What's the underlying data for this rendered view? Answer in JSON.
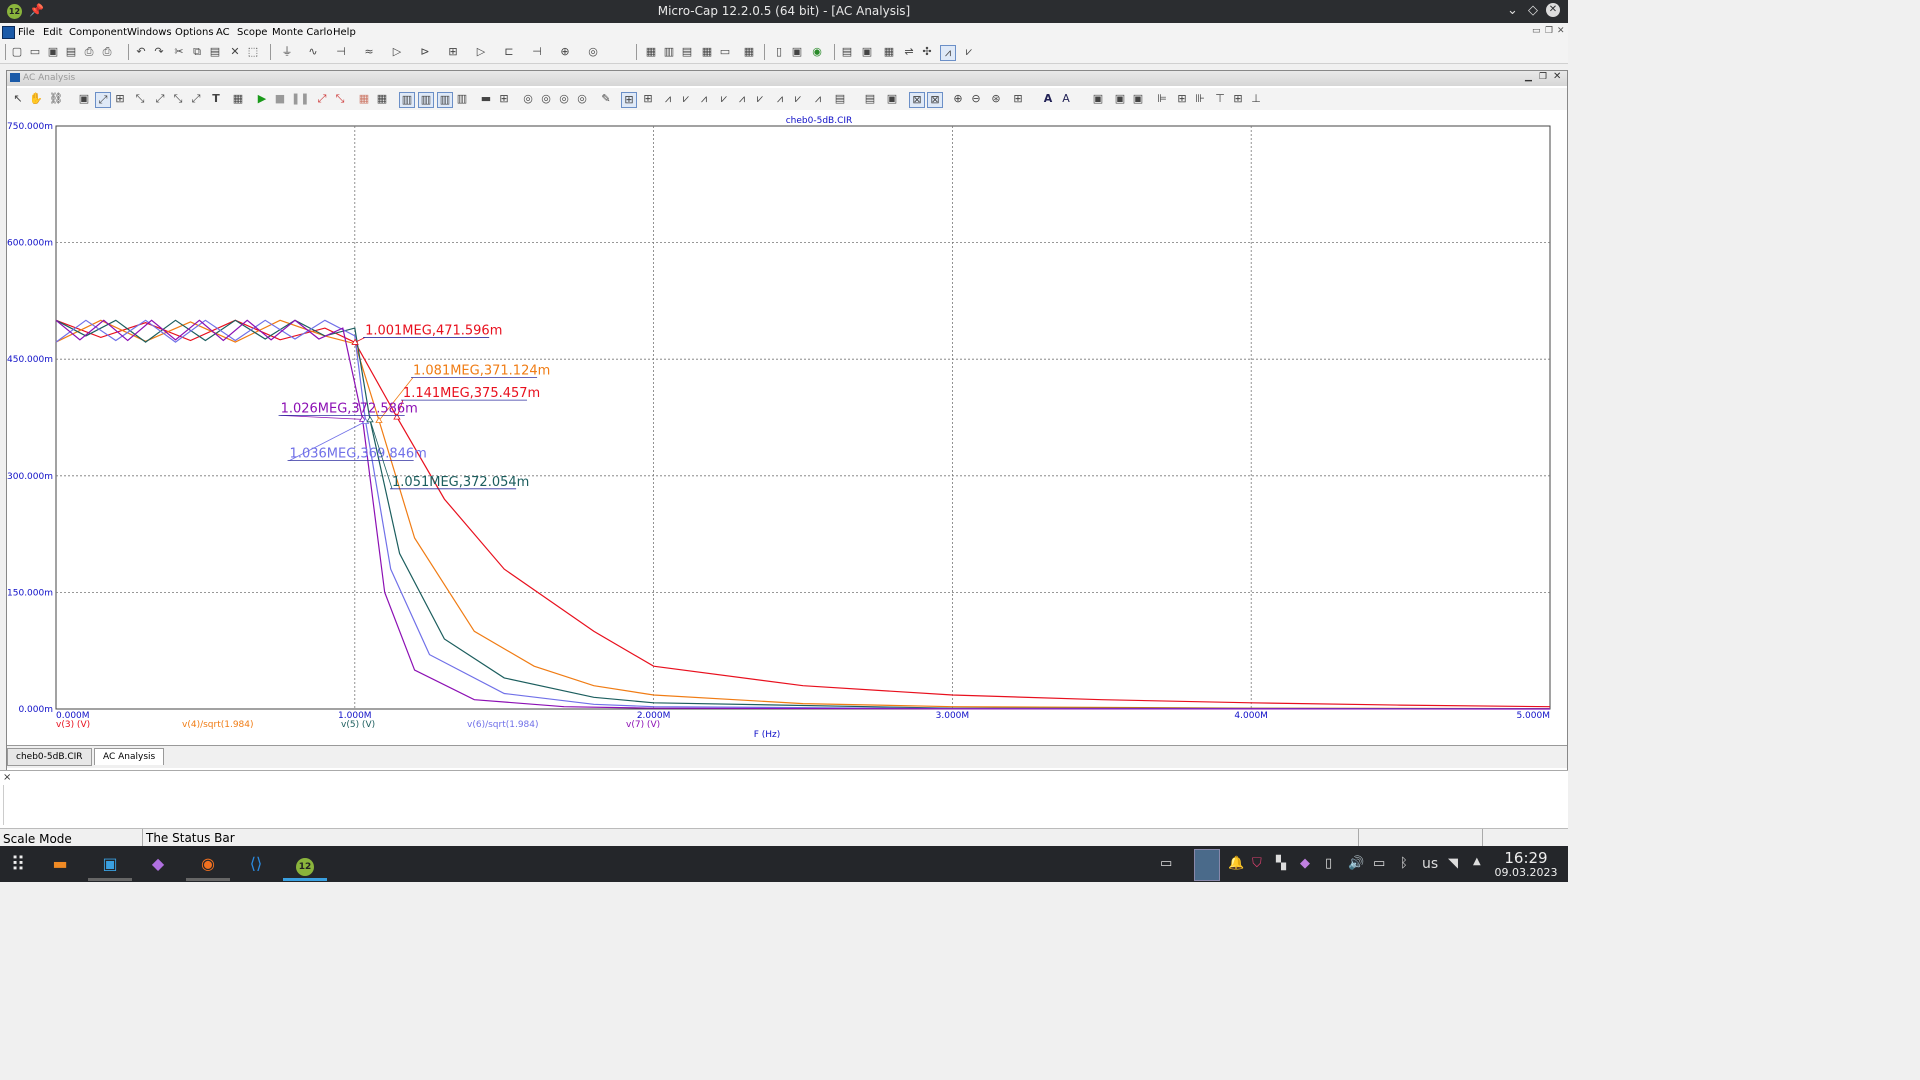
{
  "window": {
    "title": "Micro-Cap 12.2.0.5 (64 bit) - [AC Analysis]",
    "app_badge": "12"
  },
  "menu": [
    "File",
    "Edit",
    "Component",
    "Windows",
    "Options",
    "AC",
    "Scope",
    "Monte Carlo",
    "Help"
  ],
  "child_window": {
    "title": "AC Analysis"
  },
  "plot": {
    "file_title": "cheb0-5dB.CIR",
    "x_axis_title": "F (Hz)",
    "y_tick_labels": [
      "750.000m",
      "600.000m",
      "450.000m",
      "300.000m",
      "150.000m",
      "0.000m"
    ],
    "x_tick_labels": [
      "0.000M",
      "1.000M",
      "2.000M",
      "3.000M",
      "4.000M",
      "5.000M"
    ],
    "trace_labels": [
      "v(3) (V)",
      "v(4)/sqrt(1.984)",
      "v(5) (V)",
      "v(6)/sqrt(1.984)",
      "v(7) (V)"
    ],
    "cursor_labels": [
      "1.001MEG,471.596m",
      "1.081MEG,371.124m",
      "1.141MEG,375.457m",
      "1.026MEG,372.586m",
      "1.036MEG,369.846m",
      "1.051MEG,372.054m"
    ]
  },
  "chart_data": {
    "type": "line",
    "title": "cheb0-5dB.CIR",
    "xlabel": "F (Hz)",
    "ylabel": "",
    "xlim": [
      0,
      5000000
    ],
    "ylim": [
      0,
      0.75
    ],
    "grid": true,
    "series": [
      {
        "name": "v(3) (V)",
        "color": "#e8101e",
        "x": [
          0,
          150000,
          300000,
          450000,
          600000,
          750000,
          900000,
          1001000,
          1141000,
          1300000,
          1500000,
          1800000,
          2000000,
          2500000,
          3000000,
          3500000,
          4000000,
          4500000,
          5000000
        ],
        "y": [
          0.5,
          0.478,
          0.497,
          0.474,
          0.5,
          0.475,
          0.49,
          0.4716,
          0.3755,
          0.27,
          0.18,
          0.1,
          0.055,
          0.03,
          0.018,
          0.012,
          0.008,
          0.005,
          0.003
        ]
      },
      {
        "name": "v(4)/sqrt(1.984)",
        "color": "#f07c14",
        "x": [
          0,
          150000,
          300000,
          450000,
          600000,
          750000,
          900000,
          1001000,
          1081000,
          1200000,
          1400000,
          1600000,
          1800000,
          2000000,
          2500000,
          3000000,
          4000000,
          5000000
        ],
        "y": [
          0.472,
          0.5,
          0.473,
          0.498,
          0.472,
          0.5,
          0.48,
          0.47,
          0.3711,
          0.22,
          0.1,
          0.055,
          0.03,
          0.018,
          0.007,
          0.003,
          0.001,
          0.0005
        ]
      },
      {
        "name": "v(5) (V)",
        "color": "#1c5e5e",
        "x": [
          0,
          100000,
          200000,
          300000,
          400000,
          500000,
          600000,
          700000,
          800000,
          900000,
          1000000,
          1051000,
          1150000,
          1300000,
          1500000,
          1800000,
          2000000,
          3000000,
          5000000
        ],
        "y": [
          0.5,
          0.48,
          0.5,
          0.472,
          0.5,
          0.474,
          0.5,
          0.476,
          0.5,
          0.48,
          0.49,
          0.3721,
          0.2,
          0.09,
          0.04,
          0.015,
          0.008,
          0.001,
          0.0002
        ]
      },
      {
        "name": "v(6)/sqrt(1.984)",
        "color": "#7070e8",
        "x": [
          0,
          100000,
          200000,
          300000,
          400000,
          500000,
          600000,
          700000,
          800000,
          900000,
          1000000,
          1036000,
          1120000,
          1250000,
          1500000,
          1800000,
          2000000,
          3000000,
          5000000
        ],
        "y": [
          0.472,
          0.5,
          0.474,
          0.5,
          0.472,
          0.5,
          0.474,
          0.5,
          0.476,
          0.5,
          0.48,
          0.3698,
          0.18,
          0.07,
          0.02,
          0.006,
          0.003,
          0.0005,
          0.0001
        ]
      },
      {
        "name": "v(7) (V)",
        "color": "#8c10b4",
        "x": [
          0,
          80000,
          160000,
          240000,
          320000,
          400000,
          480000,
          560000,
          640000,
          720000,
          800000,
          880000,
          960000,
          1026000,
          1100000,
          1200000,
          1400000,
          1700000,
          2000000,
          3000000,
          5000000
        ],
        "y": [
          0.5,
          0.475,
          0.5,
          0.474,
          0.5,
          0.475,
          0.5,
          0.474,
          0.5,
          0.475,
          0.5,
          0.476,
          0.49,
          0.3726,
          0.15,
          0.05,
          0.012,
          0.003,
          0.001,
          0.0002,
          0.0
        ]
      }
    ],
    "annotations": [
      {
        "text": "1.001MEG,471.596m",
        "x": 1001000,
        "y": 0.471596,
        "color": "#e8101e"
      },
      {
        "text": "1.081MEG,371.124m",
        "x": 1081000,
        "y": 0.371124,
        "color": "#f07c14"
      },
      {
        "text": "1.141MEG,375.457m",
        "x": 1141000,
        "y": 0.375457,
        "color": "#e8101e"
      },
      {
        "text": "1.026MEG,372.586m",
        "x": 1026000,
        "y": 0.372586,
        "color": "#8c10b4"
      },
      {
        "text": "1.036MEG,369.846m",
        "x": 1036000,
        "y": 0.369846,
        "color": "#7070e8"
      },
      {
        "text": "1.051MEG,372.054m",
        "x": 1051000,
        "y": 0.372054,
        "color": "#1c5e5e"
      }
    ]
  },
  "tabs": [
    "cheb0-5dB.CIR",
    "AC Analysis"
  ],
  "status": {
    "mode": "Scale Mode",
    "message": "The Status Bar"
  },
  "taskbar": {
    "keyboard": "us",
    "time": "16:29",
    "date": "09.03.2023"
  },
  "output": {
    "close_glyph": "×"
  },
  "colors": {
    "titlebar": "#2b2d30",
    "taskbar": "#24262a",
    "tick_text": "#1010c8"
  }
}
